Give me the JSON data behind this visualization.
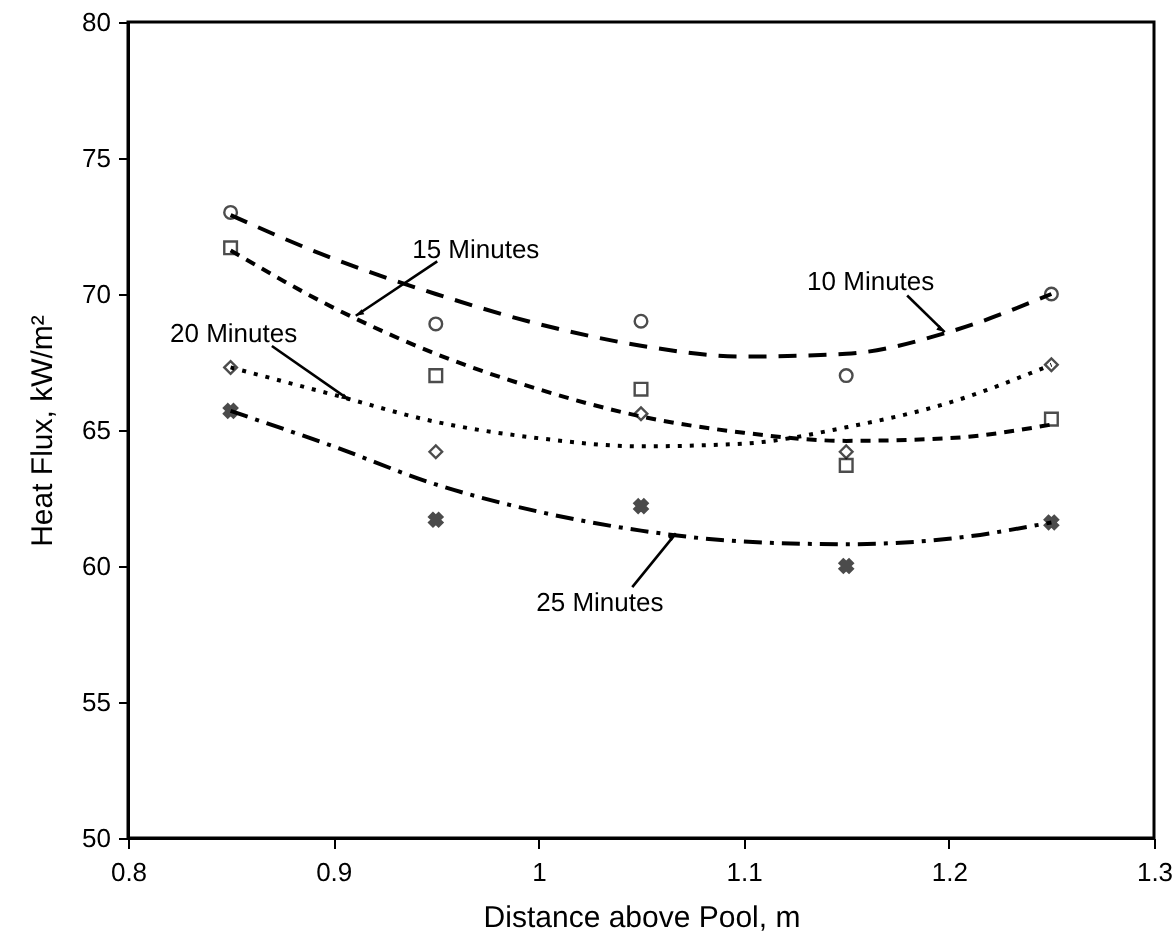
{
  "chart_data": {
    "type": "scatter",
    "xlabel": "Distance above Pool, m",
    "ylabel": "Heat Flux, kW/m²",
    "xlim": [
      0.8,
      1.3
    ],
    "xticks": [
      0.8,
      0.9,
      1,
      1.1,
      1.2,
      1.3
    ],
    "ylim": [
      50,
      80
    ],
    "yticks": [
      50,
      55,
      60,
      65,
      70,
      75,
      80
    ],
    "series": [
      {
        "type": "scatter",
        "marker": "circle",
        "color": "#000000",
        "x": [
          0.85,
          0.95,
          1.05,
          1.15,
          1.25
        ],
        "values": [
          73.0,
          68.9,
          69.0,
          67.0,
          70.0
        ]
      },
      {
        "type": "scatter",
        "marker": "square",
        "color": "#000000",
        "x": [
          0.85,
          0.95,
          1.05,
          1.15,
          1.25
        ],
        "values": [
          71.7,
          67.0,
          66.5,
          63.7,
          65.4
        ]
      },
      {
        "type": "scatter",
        "marker": "diamond",
        "color": "#000000",
        "x": [
          0.85,
          0.95,
          1.05,
          1.15,
          1.25
        ],
        "values": [
          67.3,
          64.2,
          65.6,
          64.2,
          67.4
        ]
      },
      {
        "type": "scatter",
        "marker": "cross",
        "color": "#000000",
        "x": [
          0.85,
          0.95,
          1.05,
          1.15,
          1.25
        ],
        "values": [
          65.7,
          61.7,
          62.2,
          60.0,
          61.6
        ]
      },
      {
        "type": "line",
        "line_style": "dashed",
        "color": "#000000",
        "x": [
          0.85,
          0.9,
          0.95,
          1.0,
          1.05,
          1.1,
          1.15,
          1.2,
          1.25
        ],
        "values": [
          72.9,
          71.3,
          70.0,
          68.9,
          68.1,
          67.7,
          67.8,
          68.6,
          70.0
        ]
      },
      {
        "type": "line",
        "line_style": "dashed",
        "color": "#000000",
        "x": [
          0.85,
          0.9,
          0.95,
          1.0,
          1.05,
          1.1,
          1.15,
          1.2,
          1.25
        ],
        "values": [
          71.6,
          69.5,
          67.8,
          66.5,
          65.5,
          64.9,
          64.6,
          64.7,
          65.2
        ]
      },
      {
        "type": "line",
        "line_style": "dotted",
        "color": "#000000",
        "x": [
          0.85,
          0.9,
          0.95,
          1.0,
          1.05,
          1.1,
          1.15,
          1.2,
          1.25
        ],
        "values": [
          67.3,
          66.3,
          65.3,
          64.7,
          64.4,
          64.5,
          65.1,
          66.0,
          67.4
        ]
      },
      {
        "type": "line",
        "line_style": "dashed",
        "color": "#000000",
        "x": [
          0.85,
          0.9,
          0.95,
          1.0,
          1.05,
          1.1,
          1.15,
          1.2,
          1.25
        ],
        "values": [
          65.7,
          64.4,
          63.0,
          62.0,
          61.3,
          60.9,
          60.8,
          61.0,
          61.6
        ]
      }
    ],
    "annotations": [
      {
        "text": "15 Minutes",
        "x": 0.911,
        "y": 69.2
      },
      {
        "text": "20 Minutes",
        "x": 0.908,
        "y": 66.1
      },
      {
        "text": "10 Minutes",
        "x": 1.198,
        "y": 68.6
      },
      {
        "text": "25 Minutes",
        "x": 1.067,
        "y": 61.2
      }
    ]
  }
}
